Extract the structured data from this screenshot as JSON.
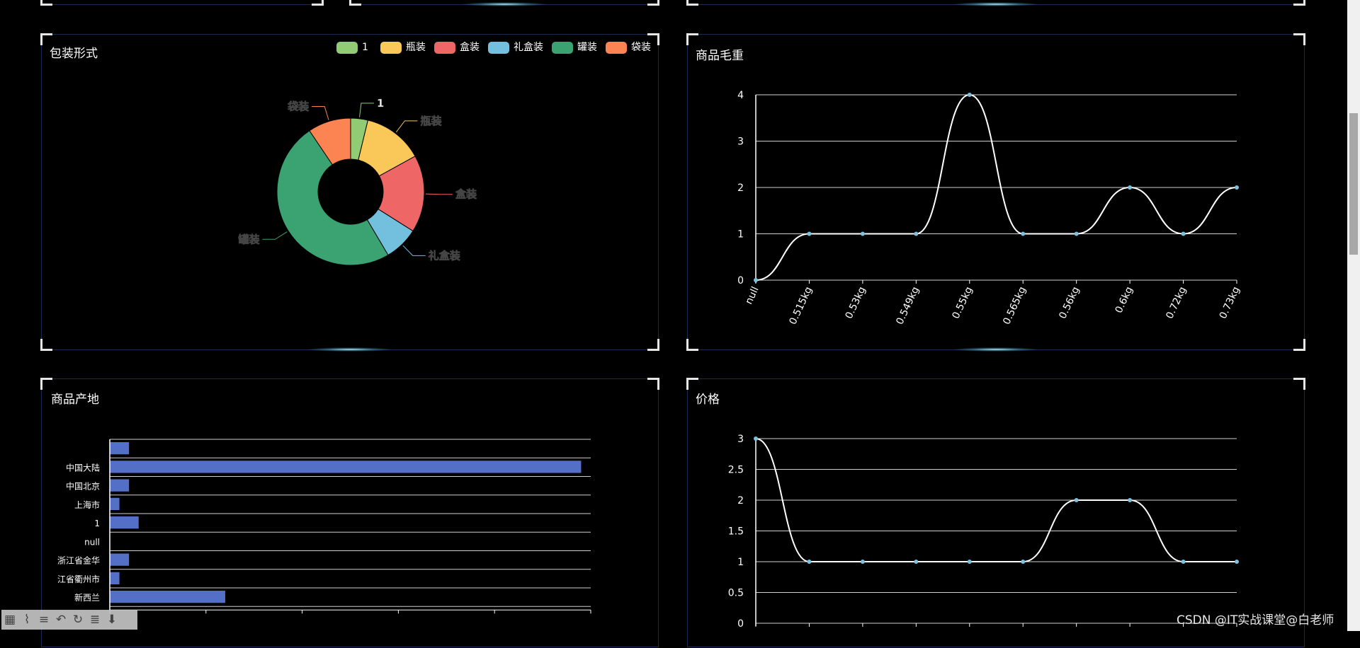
{
  "watermark": "CSDN @IT实战课堂@白老师",
  "toolbar_icons": [
    "table-icon",
    "line-chart-icon",
    "bar-chart-icon",
    "undo-icon",
    "refresh-icon",
    "stack-icon",
    "save-icon"
  ],
  "colors": {
    "background": "#000000",
    "panel_border": "#1c2c4f",
    "line": "#ffffff",
    "point": "#7ec1dd",
    "bar": "#5470c6"
  },
  "chart_data": [
    {
      "type": "pie",
      "title": "包装形式",
      "donut": true,
      "legend_position": "top-right",
      "slices": [
        {
          "name": "1",
          "value": 2,
          "color": "#91cc75"
        },
        {
          "name": "瓶装",
          "value": 7,
          "color": "#fac858"
        },
        {
          "name": "盒装",
          "value": 9,
          "color": "#ee6666"
        },
        {
          "name": "礼盒装",
          "value": 4,
          "color": "#73c0de"
        },
        {
          "name": "罐装",
          "value": 26,
          "color": "#3ba272"
        },
        {
          "name": "袋装",
          "value": 5,
          "color": "#fc8452"
        }
      ]
    },
    {
      "type": "line",
      "title": "商品毛重",
      "smooth": true,
      "grid": true,
      "categories": [
        "null",
        "0.515kg",
        "0.53kg",
        "0.549kg",
        "0.55kg",
        "0.565kg",
        "0.56kg",
        "0.6kg",
        "0.72kg",
        "0.73kg"
      ],
      "values": [
        0,
        1,
        1,
        1,
        4,
        1,
        1,
        2,
        1,
        2
      ],
      "ylim": [
        0,
        4
      ],
      "yticks": [
        "0",
        "1",
        "2",
        "3",
        "4"
      ]
    },
    {
      "type": "bar",
      "orientation": "horizontal",
      "title": "商品产地",
      "grid": true,
      "categories": [
        "",
        "中国大陆",
        "中国北京",
        "上海市",
        "1",
        "null",
        "浙江省金华",
        "江省衢州市",
        "新西兰"
      ],
      "values": [
        2,
        49,
        2,
        1,
        3,
        0,
        2,
        1,
        12
      ],
      "xlim": [
        0,
        50
      ]
    },
    {
      "type": "line",
      "title": "价格",
      "smooth": true,
      "grid": true,
      "values": [
        3,
        1,
        1,
        1,
        1,
        1,
        2,
        2,
        1,
        1
      ],
      "ylim": [
        0,
        3
      ],
      "yticks": [
        "0",
        "0.5",
        "1",
        "1.5",
        "2",
        "2.5",
        "3"
      ]
    }
  ]
}
